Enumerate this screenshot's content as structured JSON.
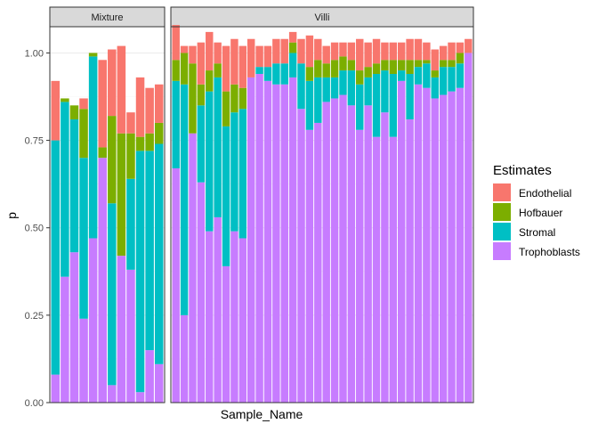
{
  "chart_data": {
    "type": "bar",
    "stacked": true,
    "faceted": true,
    "xlabel": "Sample_Name",
    "ylabel": "p",
    "ylim": [
      0,
      1.075
    ],
    "y_ticks": [
      0.0,
      0.25,
      0.5,
      0.75,
      1.0
    ],
    "y_tick_labels": [
      "0.00",
      "0.25",
      "0.50",
      "0.75",
      "1.00"
    ],
    "grid": true,
    "legend": {
      "title": "Estimates",
      "position": "right",
      "entries": [
        "Endothelial",
        "Hofbauer",
        "Stromal",
        "Trophoblasts"
      ]
    },
    "stack_order": [
      "Trophoblasts",
      "Stromal",
      "Hofbauer",
      "Endothelial"
    ],
    "colors": {
      "Endothelial": "#F8766D",
      "Hofbauer": "#7CAE00",
      "Stromal": "#00BFC4",
      "Trophoblasts": "#C77CFF"
    },
    "panels": [
      {
        "label": "Mixture",
        "bars": [
          {
            "Trophoblasts": 0.08,
            "Stromal": 0.67,
            "Hofbauer": 0.0,
            "Endothelial": 0.17
          },
          {
            "Trophoblasts": 0.36,
            "Stromal": 0.5,
            "Hofbauer": 0.01,
            "Endothelial": 0.0
          },
          {
            "Trophoblasts": 0.43,
            "Stromal": 0.38,
            "Hofbauer": 0.04,
            "Endothelial": 0.0
          },
          {
            "Trophoblasts": 0.24,
            "Stromal": 0.46,
            "Hofbauer": 0.14,
            "Endothelial": 0.03
          },
          {
            "Trophoblasts": 0.47,
            "Stromal": 0.52,
            "Hofbauer": 0.01,
            "Endothelial": 0.0
          },
          {
            "Trophoblasts": 0.7,
            "Stromal": 0.0,
            "Hofbauer": 0.03,
            "Endothelial": 0.25
          },
          {
            "Trophoblasts": 0.05,
            "Stromal": 0.52,
            "Hofbauer": 0.25,
            "Endothelial": 0.19
          },
          {
            "Trophoblasts": 0.42,
            "Stromal": 0.0,
            "Hofbauer": 0.35,
            "Endothelial": 0.25
          },
          {
            "Trophoblasts": 0.38,
            "Stromal": 0.26,
            "Hofbauer": 0.13,
            "Endothelial": 0.06
          },
          {
            "Trophoblasts": 0.03,
            "Stromal": 0.69,
            "Hofbauer": 0.04,
            "Endothelial": 0.17
          },
          {
            "Trophoblasts": 0.15,
            "Stromal": 0.57,
            "Hofbauer": 0.05,
            "Endothelial": 0.13
          },
          {
            "Trophoblasts": 0.11,
            "Stromal": 0.63,
            "Hofbauer": 0.06,
            "Endothelial": 0.11
          }
        ]
      },
      {
        "label": "Villi",
        "bars": [
          {
            "Trophoblasts": 0.67,
            "Stromal": 0.25,
            "Hofbauer": 0.06,
            "Endothelial": 0.1
          },
          {
            "Trophoblasts": 0.25,
            "Stromal": 0.66,
            "Hofbauer": 0.09,
            "Endothelial": 0.02
          },
          {
            "Trophoblasts": 0.77,
            "Stromal": 0.0,
            "Hofbauer": 0.2,
            "Endothelial": 0.05
          },
          {
            "Trophoblasts": 0.63,
            "Stromal": 0.22,
            "Hofbauer": 0.06,
            "Endothelial": 0.12
          },
          {
            "Trophoblasts": 0.49,
            "Stromal": 0.4,
            "Hofbauer": 0.06,
            "Endothelial": 0.11
          },
          {
            "Trophoblasts": 0.53,
            "Stromal": 0.4,
            "Hofbauer": 0.04,
            "Endothelial": 0.06
          },
          {
            "Trophoblasts": 0.39,
            "Stromal": 0.4,
            "Hofbauer": 0.1,
            "Endothelial": 0.13
          },
          {
            "Trophoblasts": 0.49,
            "Stromal": 0.34,
            "Hofbauer": 0.08,
            "Endothelial": 0.13
          },
          {
            "Trophoblasts": 0.47,
            "Stromal": 0.37,
            "Hofbauer": 0.06,
            "Endothelial": 0.12
          },
          {
            "Trophoblasts": 0.93,
            "Stromal": 0.0,
            "Hofbauer": 0.0,
            "Endothelial": 0.11
          },
          {
            "Trophoblasts": 0.94,
            "Stromal": 0.02,
            "Hofbauer": 0.0,
            "Endothelial": 0.06
          },
          {
            "Trophoblasts": 0.92,
            "Stromal": 0.04,
            "Hofbauer": 0.0,
            "Endothelial": 0.06
          },
          {
            "Trophoblasts": 0.91,
            "Stromal": 0.06,
            "Hofbauer": 0.0,
            "Endothelial": 0.07
          },
          {
            "Trophoblasts": 0.91,
            "Stromal": 0.06,
            "Hofbauer": 0.0,
            "Endothelial": 0.07
          },
          {
            "Trophoblasts": 0.93,
            "Stromal": 0.07,
            "Hofbauer": 0.03,
            "Endothelial": 0.03
          },
          {
            "Trophoblasts": 0.84,
            "Stromal": 0.13,
            "Hofbauer": 0.0,
            "Endothelial": 0.07
          },
          {
            "Trophoblasts": 0.78,
            "Stromal": 0.14,
            "Hofbauer": 0.04,
            "Endothelial": 0.09
          },
          {
            "Trophoblasts": 0.8,
            "Stromal": 0.13,
            "Hofbauer": 0.05,
            "Endothelial": 0.06
          },
          {
            "Trophoblasts": 0.86,
            "Stromal": 0.07,
            "Hofbauer": 0.04,
            "Endothelial": 0.05
          },
          {
            "Trophoblasts": 0.87,
            "Stromal": 0.06,
            "Hofbauer": 0.05,
            "Endothelial": 0.05
          },
          {
            "Trophoblasts": 0.88,
            "Stromal": 0.07,
            "Hofbauer": 0.04,
            "Endothelial": 0.04
          },
          {
            "Trophoblasts": 0.85,
            "Stromal": 0.1,
            "Hofbauer": 0.03,
            "Endothelial": 0.05
          },
          {
            "Trophoblasts": 0.78,
            "Stromal": 0.13,
            "Hofbauer": 0.04,
            "Endothelial": 0.09
          },
          {
            "Trophoblasts": 0.85,
            "Stromal": 0.08,
            "Hofbauer": 0.03,
            "Endothelial": 0.07
          },
          {
            "Trophoblasts": 0.76,
            "Stromal": 0.18,
            "Hofbauer": 0.03,
            "Endothelial": 0.07
          },
          {
            "Trophoblasts": 0.83,
            "Stromal": 0.12,
            "Hofbauer": 0.03,
            "Endothelial": 0.05
          },
          {
            "Trophoblasts": 0.76,
            "Stromal": 0.18,
            "Hofbauer": 0.04,
            "Endothelial": 0.05
          },
          {
            "Trophoblasts": 0.92,
            "Stromal": 0.03,
            "Hofbauer": 0.03,
            "Endothelial": 0.05
          },
          {
            "Trophoblasts": 0.81,
            "Stromal": 0.13,
            "Hofbauer": 0.04,
            "Endothelial": 0.06
          },
          {
            "Trophoblasts": 0.91,
            "Stromal": 0.05,
            "Hofbauer": 0.02,
            "Endothelial": 0.06
          },
          {
            "Trophoblasts": 0.9,
            "Stromal": 0.07,
            "Hofbauer": 0.01,
            "Endothelial": 0.05
          },
          {
            "Trophoblasts": 0.87,
            "Stromal": 0.06,
            "Hofbauer": 0.02,
            "Endothelial": 0.06
          },
          {
            "Trophoblasts": 0.88,
            "Stromal": 0.08,
            "Hofbauer": 0.02,
            "Endothelial": 0.04
          },
          {
            "Trophoblasts": 0.89,
            "Stromal": 0.07,
            "Hofbauer": 0.02,
            "Endothelial": 0.05
          },
          {
            "Trophoblasts": 0.9,
            "Stromal": 0.07,
            "Hofbauer": 0.03,
            "Endothelial": 0.03
          },
          {
            "Trophoblasts": 1.0,
            "Stromal": 0.0,
            "Hofbauer": 0.0,
            "Endothelial": 0.04
          }
        ]
      }
    ]
  }
}
